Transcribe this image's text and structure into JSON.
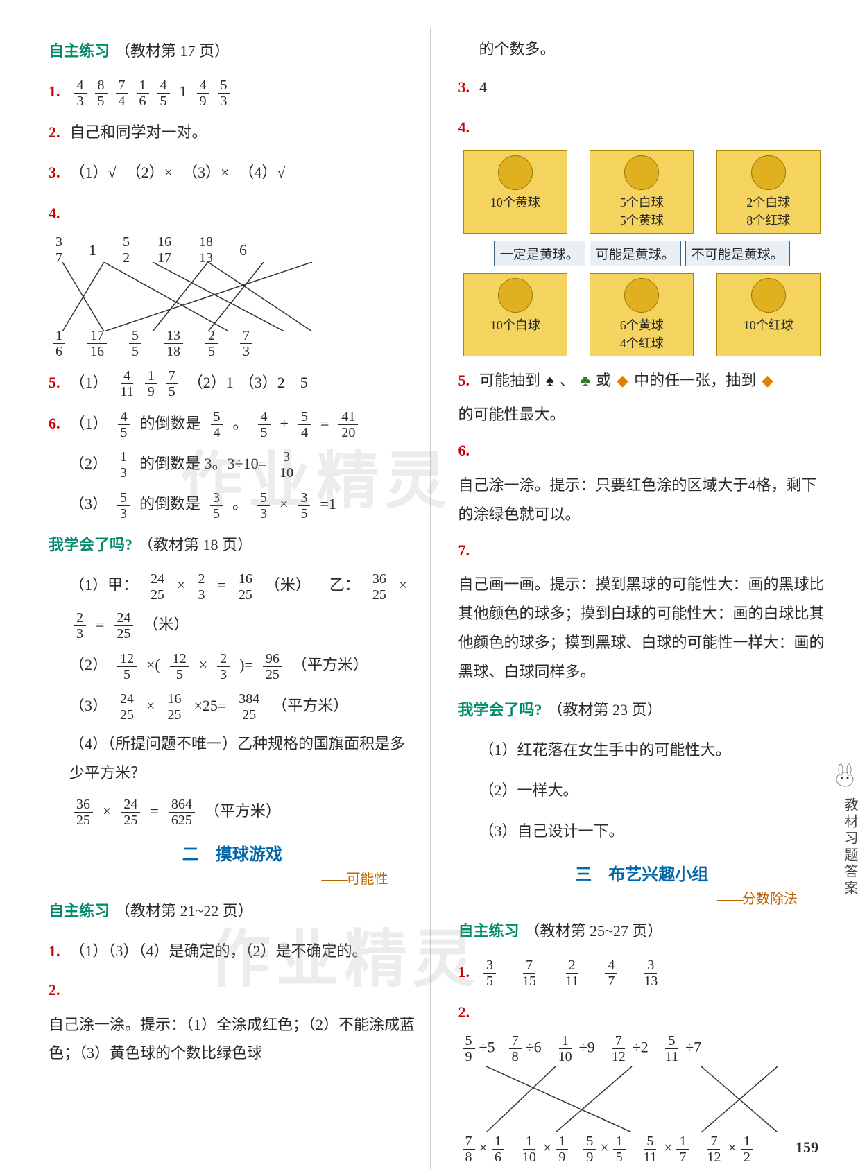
{
  "left": {
    "sec1_title": "自主练习",
    "sec1_ref": "（教材第 17 页）",
    "q1_fracs": [
      [
        "4",
        "3"
      ],
      [
        "8",
        "5"
      ],
      [
        "7",
        "4"
      ],
      [
        "1",
        "6"
      ],
      [
        "4",
        "5"
      ]
    ],
    "q1_mid": "1",
    "q1_fracs2": [
      [
        "4",
        "9"
      ],
      [
        "5",
        "3"
      ]
    ],
    "q2": "自己和同学对一对。",
    "q3_items": [
      "（1）√",
      "（2）×",
      "（3）×",
      "（4）√"
    ],
    "q4_top": [
      [
        "3",
        "7"
      ],
      "1",
      [
        "5",
        "2"
      ],
      [
        "16",
        "17"
      ],
      [
        "18",
        "13"
      ],
      "6"
    ],
    "q4_bot": [
      [
        "1",
        "6"
      ],
      [
        "17",
        "16"
      ],
      [
        "5",
        "5"
      ],
      [
        "13",
        "18"
      ],
      [
        "2",
        "5"
      ],
      [
        "7",
        "3"
      ]
    ],
    "q5_a_fracs": [
      [
        "4",
        "11"
      ],
      [
        "1",
        "9"
      ],
      [
        "7",
        "5"
      ]
    ],
    "q5_b": "（2）1",
    "q5_c": "（3）2　5",
    "q6_1_pre": "（1）",
    "q6_1_f1": [
      "4",
      "5"
    ],
    "q6_1_mid1": "的倒数是",
    "q6_1_f2": [
      "5",
      "4"
    ],
    "q6_1_dot": "。",
    "q6_1_f3": [
      "4",
      "5"
    ],
    "q6_1_plus": "+",
    "q6_1_f4": [
      "5",
      "4"
    ],
    "q6_1_eq": "=",
    "q6_1_f5": [
      "41",
      "20"
    ],
    "q6_2_pre": "（2）",
    "q6_2_f1": [
      "1",
      "3"
    ],
    "q6_2_mid": "的倒数是 3。3÷10=",
    "q6_2_f2": [
      "3",
      "10"
    ],
    "q6_3_pre": "（3）",
    "q6_3_f1": [
      "5",
      "3"
    ],
    "q6_3_mid": "的倒数是",
    "q6_3_f2": [
      "3",
      "5"
    ],
    "q6_3_dot": "。",
    "q6_3_f3": [
      "5",
      "3"
    ],
    "q6_3_x": "×",
    "q6_3_f4": [
      "3",
      "5"
    ],
    "q6_3_eq": "=1",
    "sec2_title": "我学会了吗?",
    "sec2_ref": "（教材第 18 页）",
    "l1_pre": "（1）甲：",
    "l1_f1": [
      "24",
      "25"
    ],
    "l1_x": "×",
    "l1_f2": [
      "2",
      "3"
    ],
    "l1_eq": "=",
    "l1_f3": [
      "16",
      "25"
    ],
    "l1_unit": "（米）",
    "l1b_pre": "乙：",
    "l1b_f1": [
      "36",
      "25"
    ],
    "l1b_f2": [
      "2",
      "3"
    ],
    "l1b_f3": [
      "24",
      "25"
    ],
    "l2_pre": "（2）",
    "l2_f1": [
      "12",
      "5"
    ],
    "l2_lp": "×(",
    "l2_f2": [
      "12",
      "5"
    ],
    "l2_x": "×",
    "l2_f3": [
      "2",
      "3"
    ],
    "l2_rp": ")=",
    "l2_f4": [
      "96",
      "25"
    ],
    "l2_unit": "（平方米）",
    "l3_pre": "（3）",
    "l3_f1": [
      "24",
      "25"
    ],
    "l3_x": "×",
    "l3_f2": [
      "16",
      "25"
    ],
    "l3_x2": "×25=",
    "l3_f3": [
      "384",
      "25"
    ],
    "l3_unit": "（平方米）",
    "l4": "（4）（所提问题不唯一）乙种规格的国旗面积是多少平方米？",
    "l5_f1": [
      "36",
      "25"
    ],
    "l5_x": "×",
    "l5_f2": [
      "24",
      "25"
    ],
    "l5_eq": "=",
    "l5_f3": [
      "864",
      "625"
    ],
    "l5_unit": "（平方米）",
    "chap2_title": "二　摸球游戏",
    "chap2_sub": "可能性",
    "sec3_title": "自主练习",
    "sec3_ref": "（教材第 21~22 页）",
    "s3_1": "（1）（3）（4）是确定的，（2）是不确定的。",
    "s3_2": "自己涂一涂。提示：（1）全涂成红色；（2）不能涂成蓝色；（3）黄色球的个数比绿色球"
  },
  "right": {
    "top_cont": "的个数多。",
    "r3": "4",
    "boxes_top": [
      {
        "lines": [
          "10个黄球"
        ]
      },
      {
        "lines": [
          "5个白球",
          "5个黄球"
        ]
      },
      {
        "lines": [
          "2个白球",
          "8个红球"
        ]
      }
    ],
    "labels": [
      "一定是黄球。",
      "可能是黄球。",
      "不可能是黄球。"
    ],
    "boxes_bot": [
      {
        "lines": [
          "10个白球"
        ]
      },
      {
        "lines": [
          "6个黄球",
          "4个红球"
        ]
      },
      {
        "lines": [
          "10个红球"
        ]
      }
    ],
    "r5_a": "可能抽到",
    "r5_b": "或",
    "r5_c": "中的任一张，抽到",
    "r5_d": "的可能性最大。",
    "r6": "自己涂一涂。提示：只要红色涂的区域大于4格，剩下的涂绿色就可以。",
    "r7": "自己画一画。提示：摸到黑球的可能性大：画的黑球比其他颜色的球多；摸到白球的可能性大：画的白球比其他颜色的球多；摸到黑球、白球的可能性一样大：画的黑球、白球同样多。",
    "sec4_title": "我学会了吗?",
    "sec4_ref": "（教材第 23 页）",
    "s4_1": "（1）红花落在女生手中的可能性大。",
    "s4_2": "（2）一样大。",
    "s4_3": "（3）自己设计一下。",
    "chap3_title": "三　布艺兴趣小组",
    "chap3_sub": "分数除法",
    "sec5_title": "自主练习",
    "sec5_ref": "（教材第 25~27 页）",
    "c1_fracs": [
      [
        "3",
        "5"
      ],
      [
        "7",
        "15"
      ],
      [
        "2",
        "11"
      ],
      [
        "4",
        "7"
      ],
      [
        "3",
        "13"
      ]
    ],
    "c2_top": [
      {
        "f": [
          "5",
          "9"
        ],
        "op": "÷5"
      },
      {
        "f": [
          "7",
          "8"
        ],
        "op": "÷6"
      },
      {
        "f": [
          "1",
          "10"
        ],
        "op": "÷9"
      },
      {
        "f": [
          "7",
          "12"
        ],
        "op": "÷2"
      },
      {
        "f": [
          "5",
          "11"
        ],
        "op": "÷7"
      }
    ],
    "c2_bot": [
      {
        "f1": [
          "7",
          "8"
        ],
        "f2": [
          "1",
          "6"
        ]
      },
      {
        "f1": [
          "1",
          "10"
        ],
        "f2": [
          "1",
          "9"
        ]
      },
      {
        "f1": [
          "5",
          "9"
        ],
        "f2": [
          "1",
          "5"
        ]
      },
      {
        "f1": [
          "5",
          "11"
        ],
        "f2": [
          "1",
          "7"
        ]
      },
      {
        "f1": [
          "7",
          "12"
        ],
        "f2": [
          "1",
          "2"
        ]
      }
    ]
  },
  "side_tab": "教材习题答案",
  "page": "159",
  "watermark": "作业精灵",
  "colors": {
    "section": "#008c6a",
    "num": "#cc0000",
    "chapter": "#0066aa",
    "sub": "#bb6600",
    "box_bg": "#f4d35e",
    "label_border": "#406080"
  }
}
